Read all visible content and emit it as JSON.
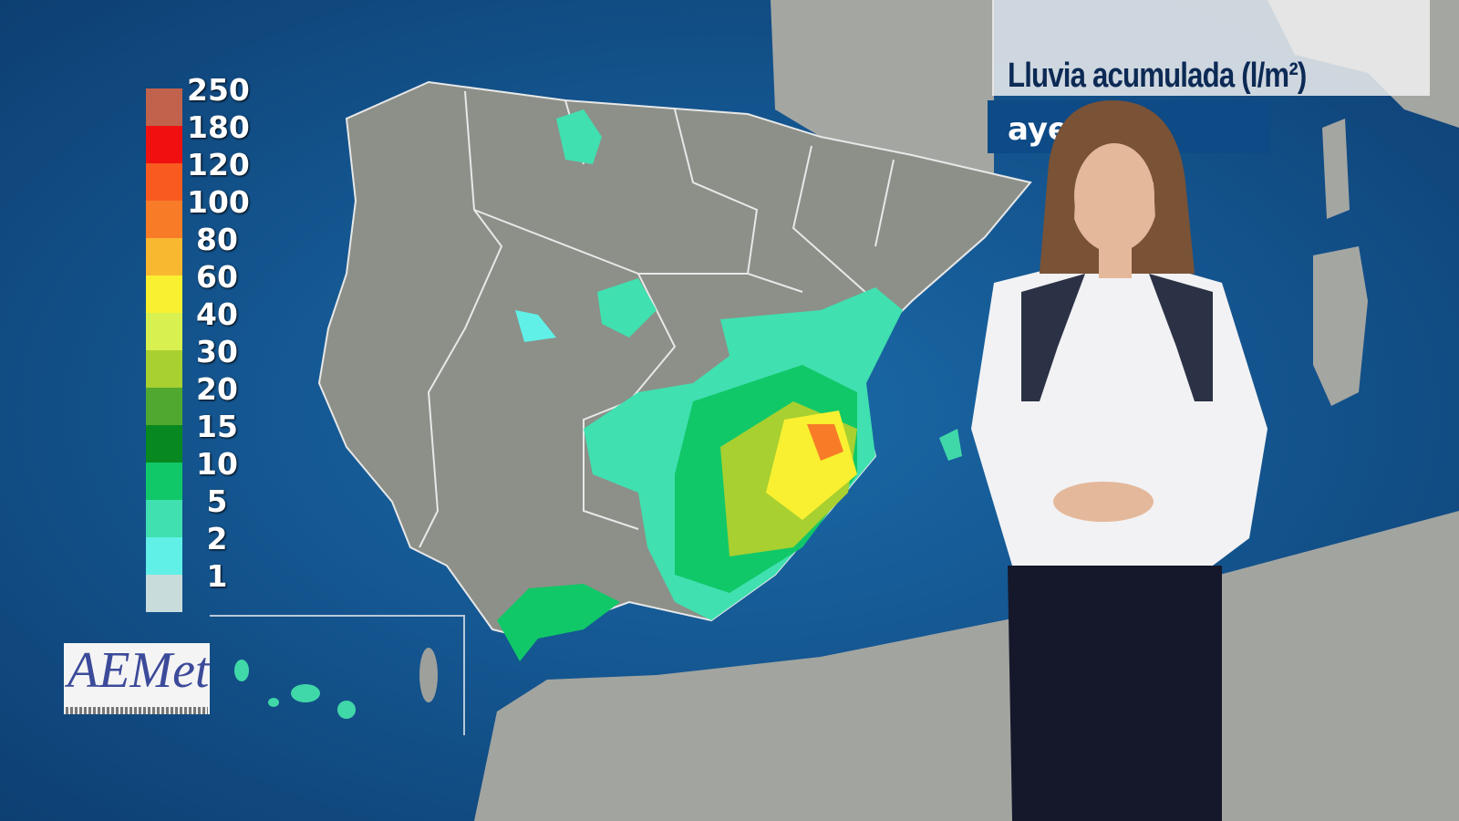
{
  "title": "Lluvia acumulada (l/m²)",
  "subtitle": "aye",
  "logo_text": "AEMet",
  "legend": {
    "unit": "l/m²",
    "bins": [
      {
        "label": "250",
        "color": "#c0624c"
      },
      {
        "label": "180",
        "color": "#f01010"
      },
      {
        "label": "120",
        "color": "#f85a20"
      },
      {
        "label": "100",
        "color": "#f87c28"
      },
      {
        "label": "80",
        "color": "#f8b830"
      },
      {
        "label": "60",
        "color": "#f8f030"
      },
      {
        "label": "40",
        "color": "#d8f050"
      },
      {
        "label": "30",
        "color": "#a8d030"
      },
      {
        "label": "20",
        "color": "#50a830"
      },
      {
        "label": "15",
        "color": "#088820"
      },
      {
        "label": "10",
        "color": "#10c868"
      },
      {
        "label": "5",
        "color": "#40e0b0"
      },
      {
        "label": "2",
        "color": "#60f0e8"
      },
      {
        "label": "1",
        "color": "#c8dcdc"
      }
    ]
  },
  "colors": {
    "sea": "#14558f",
    "land": "#8c9088",
    "title_bar": "#0d4a86",
    "title_text": "#0c2a55"
  }
}
